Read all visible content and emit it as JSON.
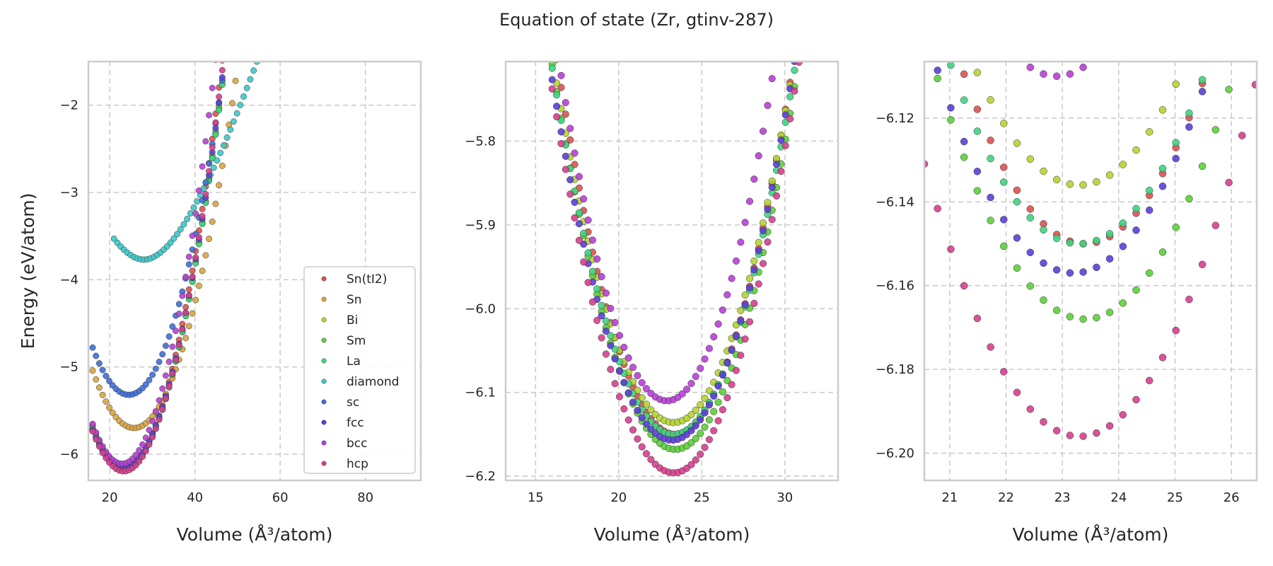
{
  "figure": {
    "title": "Equation of state (Zr, gtinv-287)"
  },
  "chart_data": {
    "type": "scatter",
    "title": "Equation of state (Zr, gtinv-287)",
    "ylabel": "Energy (eV/atom)",
    "xlabel": "Volume (Å³/atom)",
    "legend": {
      "placement": "lower-right of first panel",
      "entries": [
        {
          "name": "Sn(tI2)",
          "color": "#d9534f"
        },
        {
          "name": "Sn",
          "color": "#d9a441"
        },
        {
          "name": "Bi",
          "color": "#b5d334"
        },
        {
          "name": "Sm",
          "color": "#5ccf3a"
        },
        {
          "name": "La",
          "color": "#3fd481"
        },
        {
          "name": "diamond",
          "color": "#3ec6c8"
        },
        {
          "name": "sc",
          "color": "#3f6fd6"
        },
        {
          "name": "fcc",
          "color": "#5a3fd6"
        },
        {
          "name": "bcc",
          "color": "#b83fd6"
        },
        {
          "name": "hcp",
          "color": "#d63f8e"
        }
      ]
    },
    "panels": [
      {
        "xlim": [
          15,
          93
        ],
        "ylim": [
          -6.3,
          -1.5
        ],
        "xticks": [
          20,
          40,
          60,
          80
        ],
        "yticks": [
          -6,
          -5,
          -4,
          -3,
          -2
        ],
        "xtick_labels": [
          "20",
          "40",
          "60",
          "80"
        ],
        "ytick_labels": [
          "−6",
          "−5",
          "−4",
          "−3",
          "−2"
        ],
        "grid": true
      },
      {
        "xlim": [
          13.2,
          33.2
        ],
        "ylim": [
          -6.205,
          -5.705
        ],
        "xticks": [
          15,
          20,
          25,
          30
        ],
        "yticks": [
          -6.2,
          -6.1,
          -6.0,
          -5.9,
          -5.8
        ],
        "xtick_labels": [
          "15",
          "20",
          "25",
          "30"
        ],
        "ytick_labels": [
          "−6.2",
          "−6.1",
          "−6.0",
          "−5.9",
          "−5.8"
        ],
        "grid": true
      },
      {
        "xlim": [
          20.55,
          26.45
        ],
        "ylim": [
          -6.2065,
          -6.1065
        ],
        "xticks": [
          21,
          22,
          23,
          24,
          25,
          26
        ],
        "yticks": [
          -6.2,
          -6.18,
          -6.16,
          -6.14,
          -6.12
        ],
        "xtick_labels": [
          "21",
          "22",
          "23",
          "24",
          "25",
          "26"
        ],
        "ytick_labels": [
          "−6.20",
          "−6.18",
          "−6.16",
          "−6.14",
          "−6.12"
        ],
        "grid": true
      }
    ],
    "series": [
      {
        "name": "Sn(tI2)",
        "model": {
          "v0": 23.4,
          "e0": -6.15,
          "k": 0.0088,
          "b": 0.0,
          "vmin": 16.0,
          "vmax": 70.0
        }
      },
      {
        "name": "Sn",
        "model": {
          "v0": 25.7,
          "e0": -5.7,
          "k": 0.007,
          "b": 0.0,
          "vmin": 16.0,
          "vmax": 69.0
        }
      },
      {
        "name": "Bi",
        "model": {
          "v0": 23.3,
          "e0": -6.136,
          "k": 0.0082,
          "b": 0.0,
          "vmin": 16.0,
          "vmax": 70.0
        }
      },
      {
        "name": "Sm",
        "model": {
          "v0": 23.4,
          "e0": -6.168,
          "k": 0.0084,
          "b": 0.0,
          "vmin": 16.0,
          "vmax": 70.0
        }
      },
      {
        "name": "La",
        "model": {
          "v0": 23.3,
          "e0": -6.15,
          "k": 0.0082,
          "b": 0.0,
          "vmin": 16.0,
          "vmax": 70.0
        }
      },
      {
        "name": "diamond",
        "model": {
          "v0": 28.0,
          "e0": -3.77,
          "k": 0.006,
          "b": 0.0325,
          "vmin": 21.0,
          "vmax": 92.0
        }
      },
      {
        "name": "sc",
        "model": {
          "v0": 24.5,
          "e0": -5.32,
          "k": 0.0075,
          "b": 0.0,
          "vmin": 16.0,
          "vmax": 75.0
        }
      },
      {
        "name": "fcc",
        "model": {
          "v0": 23.2,
          "e0": -6.157,
          "k": 0.0083,
          "b": 0.0,
          "vmin": 16.0,
          "vmax": 70.0
        }
      },
      {
        "name": "bcc",
        "model": {
          "v0": 22.9,
          "e0": -6.11,
          "k": 0.0096,
          "b": 0.0,
          "vmin": 16.0,
          "vmax": 68.0
        }
      },
      {
        "name": "hcp",
        "model": {
          "v0": 23.3,
          "e0": -6.196,
          "k": 0.0086,
          "b": 0.0,
          "vmin": 16.0,
          "vmax": 69.0
        }
      }
    ]
  }
}
